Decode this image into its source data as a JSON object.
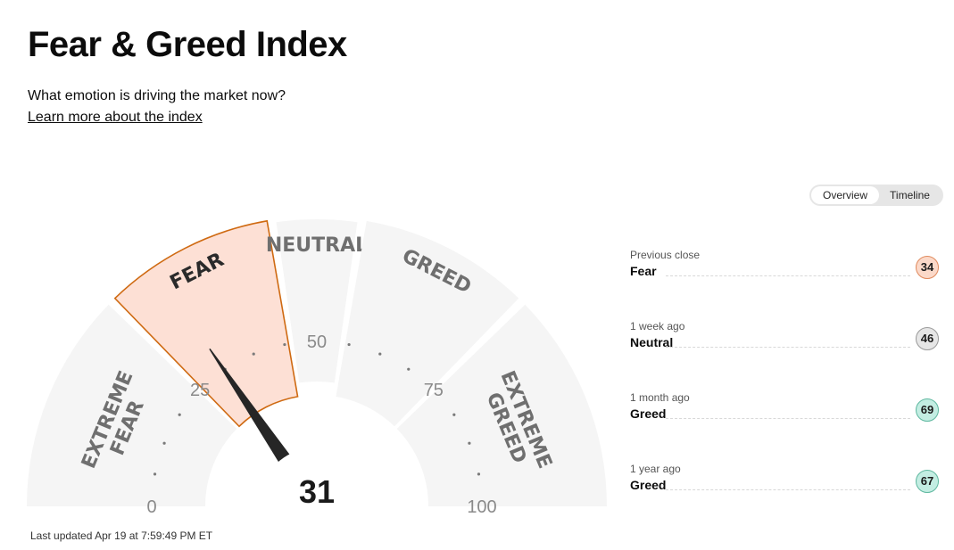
{
  "header": {
    "title": "Fear & Greed Index",
    "subtitle": "What emotion is driving the market now?",
    "learn_more": "Learn more about the index"
  },
  "view_toggle": {
    "options": [
      "Overview",
      "Timeline"
    ],
    "selected": "Overview"
  },
  "gauge": {
    "value": 31,
    "value_label": "31",
    "active_zone": "FEAR",
    "zones": [
      {
        "label_lines": [
          "EXTREME",
          "FEAR"
        ],
        "from": 0,
        "to": 25
      },
      {
        "label_lines": [
          "FEAR"
        ],
        "from": 25,
        "to": 45
      },
      {
        "label_lines": [
          "NEUTRAL"
        ],
        "from": 45,
        "to": 55
      },
      {
        "label_lines": [
          "GREED"
        ],
        "from": 55,
        "to": 75
      },
      {
        "label_lines": [
          "EXTREME",
          "GREED"
        ],
        "from": 75,
        "to": 100
      }
    ],
    "ticks": [
      {
        "value": 0,
        "label": "0"
      },
      {
        "value": 25,
        "label": "25"
      },
      {
        "value": 50,
        "label": "50"
      },
      {
        "value": 75,
        "label": "75"
      },
      {
        "value": 100,
        "label": "100"
      }
    ]
  },
  "history": [
    {
      "label": "Previous close",
      "rating": "Fear",
      "value": "34",
      "bg": "#fbd9c9",
      "border": "#e08a5e"
    },
    {
      "label": "1 week ago",
      "rating": "Neutral",
      "value": "46",
      "bg": "#e6e6e6",
      "border": "#9a9a9a"
    },
    {
      "label": "1 month ago",
      "rating": "Greed",
      "value": "69",
      "bg": "#c3ede2",
      "border": "#5fb8a0"
    },
    {
      "label": "1 year ago",
      "rating": "Greed",
      "value": "67",
      "bg": "#c3ede2",
      "border": "#5fb8a0"
    }
  ],
  "last_updated": "Last updated Apr 19 at 7:59:49 PM ET",
  "colors": {
    "zone_fill": "#f5f5f5",
    "active_fill": "#fde0d5",
    "active_stroke": "#cf6a12",
    "zone_text": "#6f6f6f",
    "active_text": "#2a2a2a",
    "needle": "#262626",
    "tick_text": "#8a8a8a"
  }
}
